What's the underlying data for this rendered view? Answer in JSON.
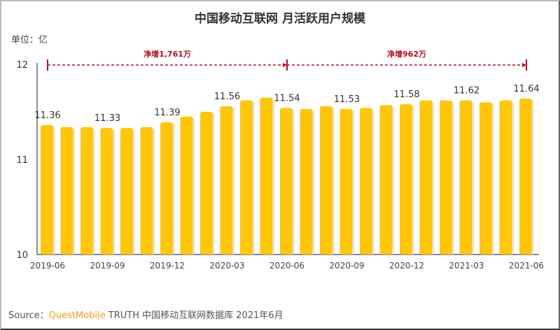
{
  "chart_data": {
    "type": "bar",
    "title": "中国移动互联网 月活跃用户规模",
    "unit_label": "单位：亿",
    "categories": [
      "2019-06",
      "2019-07",
      "2019-08",
      "2019-09",
      "2019-10",
      "2019-11",
      "2019-12",
      "2020-01",
      "2020-02",
      "2020-03",
      "2020-04",
      "2020-05",
      "2020-06",
      "2020-07",
      "2020-08",
      "2020-09",
      "2020-10",
      "2020-11",
      "2020-12",
      "2021-01",
      "2021-02",
      "2021-03",
      "2021-04",
      "2021-05",
      "2021-06"
    ],
    "x_tick_labels": [
      "2019-06",
      "2019-09",
      "2019-12",
      "2020-03",
      "2020-06",
      "2020-09",
      "2020-12",
      "2021-03",
      "2021-06"
    ],
    "values": [
      11.36,
      11.34,
      11.34,
      11.33,
      11.33,
      11.34,
      11.39,
      11.45,
      11.5,
      11.56,
      11.62,
      11.65,
      11.54,
      11.53,
      11.56,
      11.53,
      11.54,
      11.57,
      11.58,
      11.62,
      11.62,
      11.62,
      11.6,
      11.62,
      11.64
    ],
    "data_labels": {
      "2019-06": "11.36",
      "2019-09": "11.33",
      "2019-12": "11.39",
      "2020-03": "11.56",
      "2020-06": "11.54",
      "2020-09": "11.53",
      "2020-12": "11.58",
      "2021-03": "11.62",
      "2021-06": "11.64"
    },
    "ylim": [
      10,
      12
    ],
    "y_ticks": [
      "10",
      "11",
      "12"
    ],
    "grid": false,
    "bar_color": "#FFC60A",
    "annotations": [
      {
        "from": "2019-06",
        "to": "2020-06",
        "text": "净增1,761万",
        "color": "#B01020"
      },
      {
        "from": "2020-06",
        "to": "2021-06",
        "text": "净增962万",
        "color": "#B01020"
      }
    ]
  },
  "source": {
    "prefix": "Source：",
    "brand": "QuestMobile",
    "rest": " TRUTH 中国移动互联网数据库 2021年6月"
  }
}
